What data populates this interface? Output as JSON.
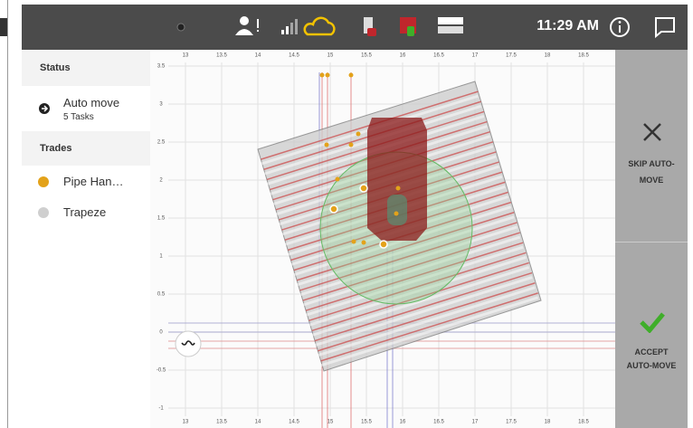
{
  "status_bar": {
    "time": "11:29 AM"
  },
  "sidebar": {
    "status_heading": "Status",
    "task": {
      "title": "Auto move",
      "subtitle": "5 Tasks"
    },
    "trades_heading": "Trades",
    "trades": [
      {
        "label": "Pipe Han…",
        "color": "#e3a21a"
      },
      {
        "label": "Trapeze",
        "color": "#cfcfcf"
      }
    ]
  },
  "map": {
    "x_ticks": [
      13,
      13.5,
      14,
      14.5,
      15,
      15.5,
      16,
      16.5,
      17,
      17.5,
      18,
      18.5
    ],
    "y_ticks": [
      3.5,
      3,
      2.5,
      2,
      1.5,
      1,
      0.5,
      0,
      -0.5,
      -1
    ]
  },
  "actions": {
    "skip": "SKIP AUTO-MOVE",
    "accept": "ACCEPT AUTO-MOVE"
  }
}
